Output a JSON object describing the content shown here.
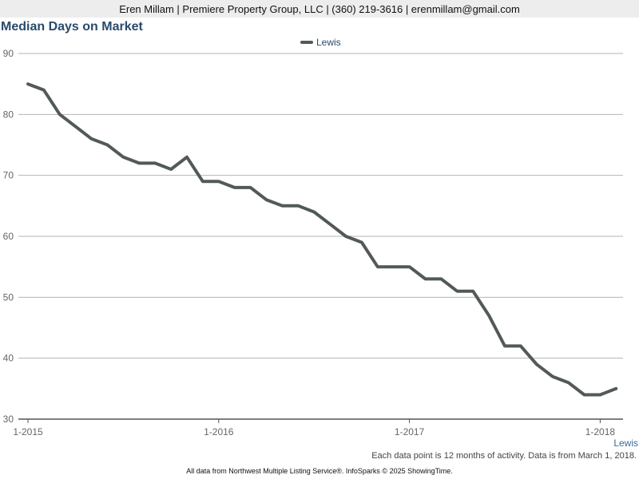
{
  "header": {
    "contact": "Eren Millam | Premiere Property Group, LLC | (360) 219-3616 | erenmillam@gmail.com"
  },
  "chart_data": {
    "type": "line",
    "title": "Median Days on Market",
    "xlabel": "",
    "ylabel": "",
    "ylim": [
      30,
      90
    ],
    "yticks": [
      "30",
      "40",
      "50",
      "60",
      "70",
      "80",
      "90"
    ],
    "xticks": [
      {
        "label": "1-2015",
        "index": 0
      },
      {
        "label": "1-2016",
        "index": 12
      },
      {
        "label": "1-2017",
        "index": 24
      },
      {
        "label": "1-2018",
        "index": 36
      }
    ],
    "grid": true,
    "legend_position": "top-center",
    "series": [
      {
        "name": "Lewis",
        "color": "#525a58",
        "values": [
          85,
          84,
          80,
          78,
          76,
          75,
          73,
          72,
          72,
          71,
          73,
          69,
          69,
          68,
          68,
          66,
          65,
          65,
          64,
          62,
          60,
          59,
          55,
          55,
          55,
          53,
          53,
          51,
          51,
          47,
          42,
          42,
          39,
          37,
          36,
          34,
          34,
          35
        ]
      }
    ],
    "series_end_label": "Lewis"
  },
  "footnote": "Each data point is 12 months of activity. Data is from March 1, 2018.",
  "footer": "All data from Northwest Multiple Listing Service®. InfoSparks © 2025 ShowingTime."
}
